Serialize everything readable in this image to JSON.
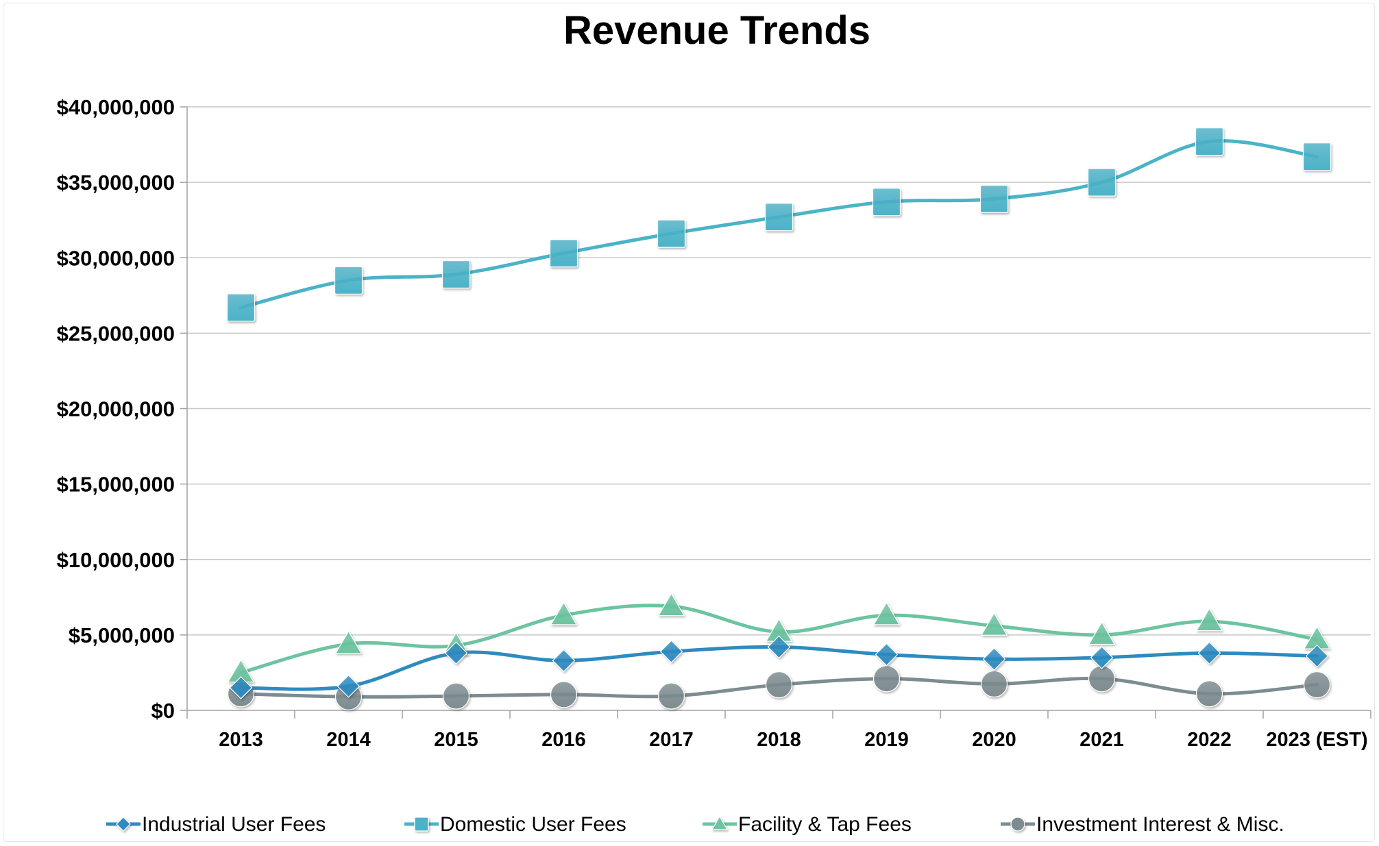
{
  "chart_data": {
    "type": "line",
    "title": "Revenue Trends",
    "xlabel": "",
    "ylabel": "",
    "categories": [
      "2013",
      "2014",
      "2015",
      "2016",
      "2017",
      "2018",
      "2019",
      "2020",
      "2021",
      "2022",
      "2023 (EST)"
    ],
    "ylim": [
      0,
      40000000
    ],
    "yticks": [
      {
        "value": 0,
        "label": "$0"
      },
      {
        "value": 5000000,
        "label": "$5,000,000"
      },
      {
        "value": 10000000,
        "label": "$10,000,000"
      },
      {
        "value": 15000000,
        "label": "$15,000,000"
      },
      {
        "value": 20000000,
        "label": "$20,000,000"
      },
      {
        "value": 25000000,
        "label": "$25,000,000"
      },
      {
        "value": 30000000,
        "label": "$30,000,000"
      },
      {
        "value": 35000000,
        "label": "$35,000,000"
      },
      {
        "value": 40000000,
        "label": "$40,000,000"
      }
    ],
    "grid": true,
    "legend": "bottom",
    "series": [
      {
        "name": "Industrial User Fees",
        "marker": "diamond",
        "color": "#2E8BC0",
        "values": [
          1500000,
          1600000,
          3800000,
          3300000,
          3900000,
          4200000,
          3700000,
          3400000,
          3500000,
          3800000,
          3600000
        ]
      },
      {
        "name": "Domestic User Fees",
        "marker": "square",
        "color": "#4BB3C8",
        "values": [
          26700000,
          28500000,
          28900000,
          30300000,
          31600000,
          32700000,
          33700000,
          33900000,
          35000000,
          37700000,
          36700000
        ]
      },
      {
        "name": "Facility & Tap Fees",
        "marker": "triangle",
        "color": "#6CC4A0",
        "values": [
          2500000,
          4400000,
          4300000,
          6300000,
          6900000,
          5200000,
          6300000,
          5600000,
          5000000,
          5900000,
          4700000
        ]
      },
      {
        "name": "Investment Interest & Misc.",
        "marker": "circle",
        "color": "#7D8C90",
        "values": [
          1100000,
          900000,
          950000,
          1050000,
          950000,
          1700000,
          2100000,
          1750000,
          2100000,
          1100000,
          1700000
        ]
      }
    ]
  }
}
